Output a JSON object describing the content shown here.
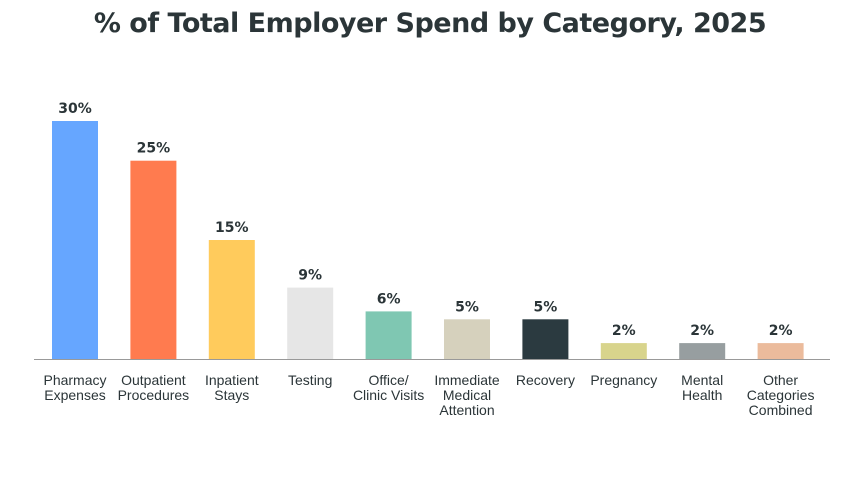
{
  "title": "% of Total Employer Spend by Category, 2025",
  "chart_data": {
    "type": "bar",
    "title": "% of Total Employer Spend by Category, 2025",
    "xlabel": "",
    "ylabel": "",
    "ylim": [
      0,
      30
    ],
    "grid": false,
    "legend": "none",
    "categories": [
      [
        "Pharmacy",
        "Expenses"
      ],
      [
        "Outpatient",
        "Procedures"
      ],
      [
        "Inpatient",
        "Stays"
      ],
      [
        "Testing"
      ],
      [
        "Office/",
        "Clinic Visits"
      ],
      [
        "Immediate",
        "Medical",
        "Attention"
      ],
      [
        "Recovery"
      ],
      [
        "Pregnancy"
      ],
      [
        "Mental",
        "Health"
      ],
      [
        "Other",
        "Categories",
        "Combined"
      ]
    ],
    "values": [
      30,
      25,
      15,
      9,
      6,
      5,
      5,
      2,
      2,
      2
    ],
    "value_labels": [
      "30%",
      "25%",
      "15%",
      "9%",
      "6%",
      "5%",
      "5%",
      "2%",
      "2%",
      "2%"
    ],
    "colors": [
      "#66a6ff",
      "#ff7b4f",
      "#ffcb5c",
      "#e6e6e6",
      "#7fc7b2",
      "#d6d1bd",
      "#2b3a40",
      "#d8d48c",
      "#979ea0",
      "#ebbb9c"
    ],
    "axis_color": "#999999"
  }
}
